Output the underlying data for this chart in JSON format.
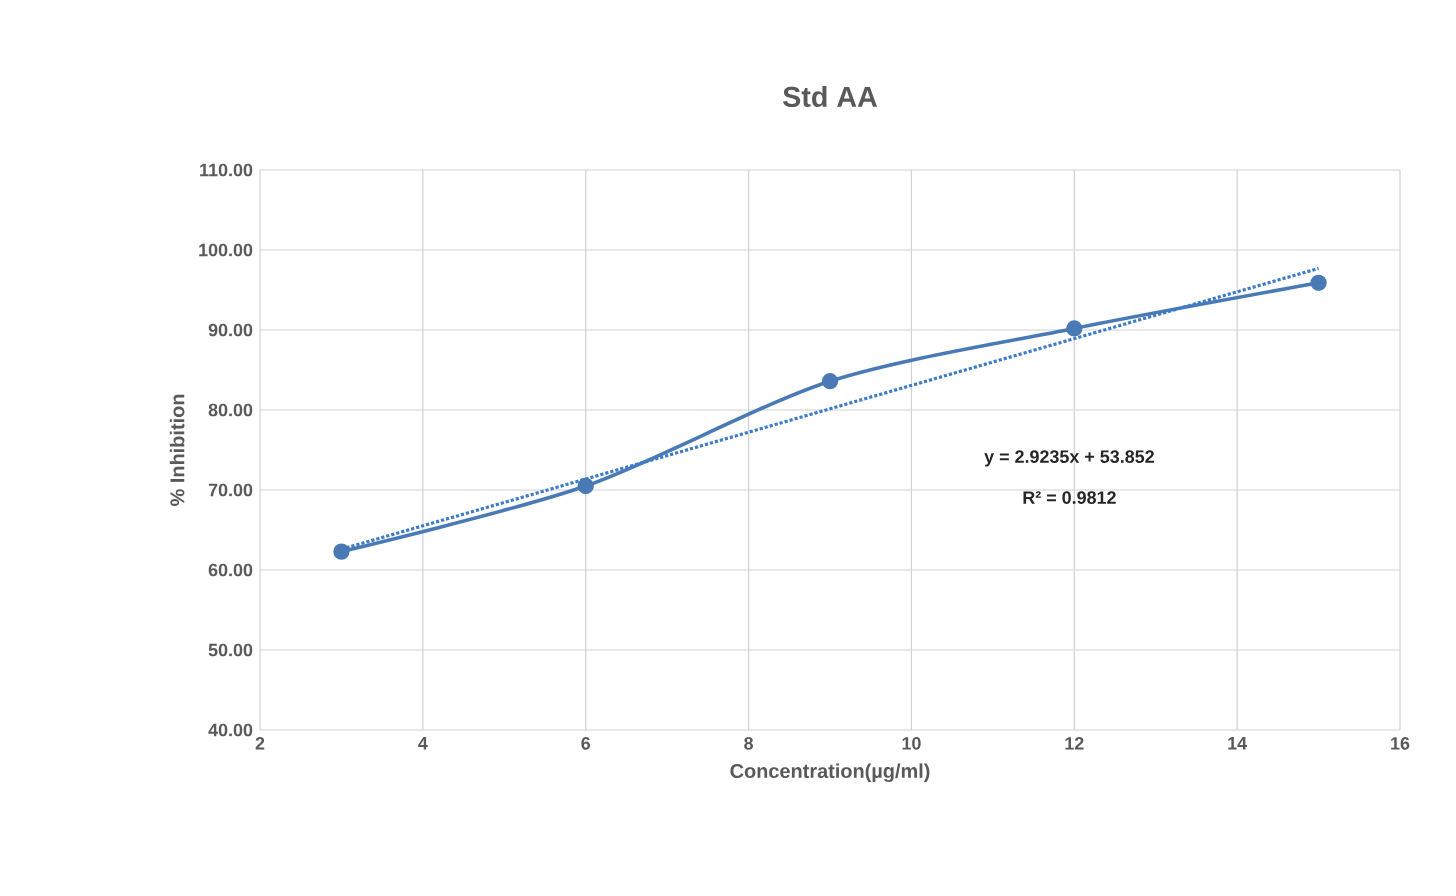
{
  "chart_data": {
    "type": "line",
    "title": "Std AA",
    "xlabel": "Concentration(µg/ml)",
    "ylabel": "% Inhibition",
    "xlim": [
      2,
      16
    ],
    "xticks": [
      2,
      4,
      6,
      8,
      10,
      12,
      14,
      16
    ],
    "ylim": [
      40,
      110
    ],
    "yticks": [
      {
        "value": 40,
        "label": "40.00"
      },
      {
        "value": 50,
        "label": "50.00"
      },
      {
        "value": 60,
        "label": "60.00"
      },
      {
        "value": 70,
        "label": "70.00"
      },
      {
        "value": 80,
        "label": "80.00"
      },
      {
        "value": 90,
        "label": "90.00"
      },
      {
        "value": 100,
        "label": "100.00"
      },
      {
        "value": 110,
        "label": "110.00"
      }
    ],
    "grid": true,
    "series": [
      {
        "color": "#4a7ab5",
        "marker": "circle",
        "line_style": "solid",
        "x": [
          3,
          6,
          9,
          12,
          15
        ],
        "values": [
          62.3,
          70.5,
          83.6,
          90.2,
          95.9
        ]
      },
      {
        "color": "#3d7cc9",
        "marker": "none",
        "line_style": "dotted",
        "x": [
          3,
          15
        ],
        "values": [
          62.6,
          97.7
        ]
      }
    ],
    "annotations": [
      "y = 2.9235x + 53.852",
      "R² = 0.9812"
    ]
  }
}
